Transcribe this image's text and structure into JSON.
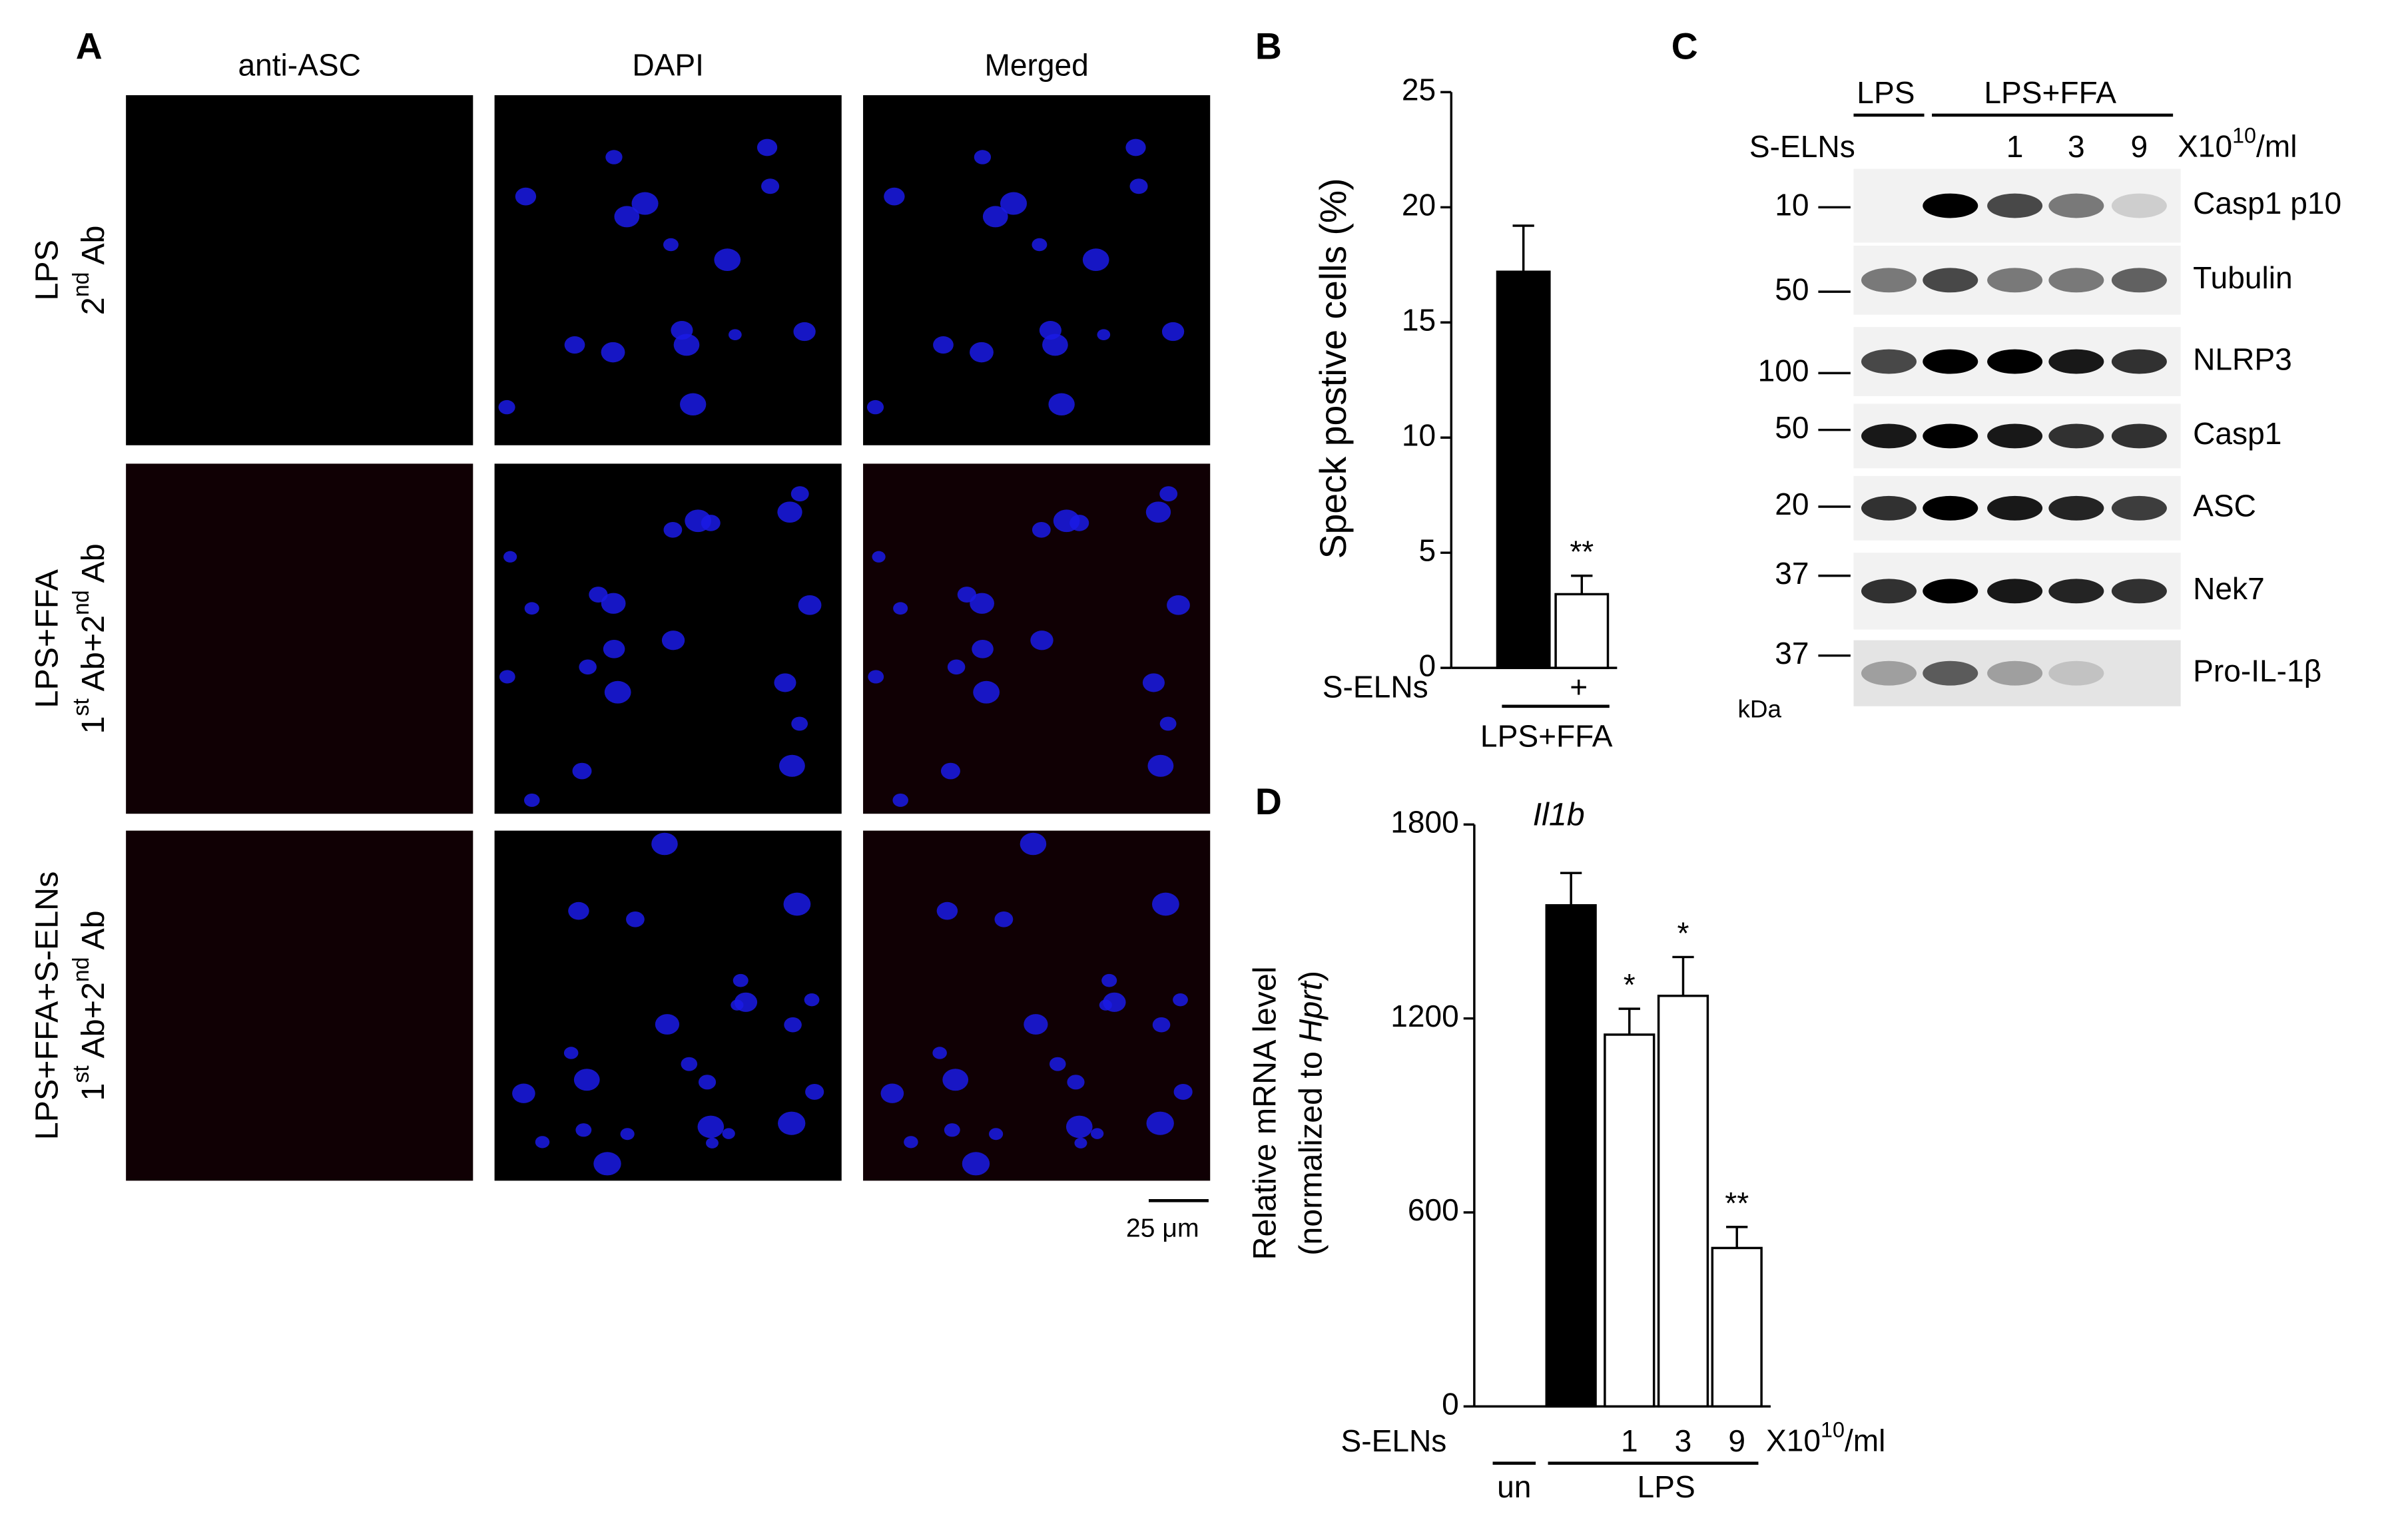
{
  "panel_labels": [
    "A",
    "B",
    "C",
    "D"
  ],
  "panel_a": {
    "columns": [
      "anti-ASC",
      "DAPI",
      "Merged"
    ],
    "rows": [
      {
        "line1": "LPS",
        "line2": [
          "2",
          "nd",
          " Ab"
        ]
      },
      {
        "line1": "LPS+FFA",
        "line2": [
          "1",
          "st",
          " Ab+2",
          "nd",
          " Ab"
        ]
      },
      {
        "line1": "LPS+FFA+S-ELNs",
        "line2": [
          "1",
          "st",
          " Ab+2",
          "nd",
          " Ab"
        ]
      }
    ],
    "scale_bar": "25 μm"
  },
  "panel_c": {
    "groups": [
      "LPS",
      "LPS+FFA"
    ],
    "row_label": "S-ELNs",
    "lanes": [
      "1",
      "3",
      "9"
    ],
    "unit": [
      "X10",
      "10",
      "/ml"
    ],
    "blots": [
      {
        "marker": "10",
        "name": "Casp1 p10"
      },
      {
        "marker": "50",
        "name": "Tubulin"
      },
      {
        "marker": "100",
        "name": "NLRP3"
      },
      {
        "marker": "50",
        "name": "Casp1"
      },
      {
        "marker": "20",
        "name": "ASC"
      },
      {
        "marker": "37",
        "name": "Nek7"
      },
      {
        "marker": "37",
        "name": "Pro-IL-1β"
      }
    ],
    "marker_unit": "kDa"
  },
  "chart_data": [
    {
      "type": "bar",
      "ylabel": "Speck postive cells (%)",
      "row_label": "S-ELNs",
      "categories": [
        null,
        "+"
      ],
      "group_labels": [
        "LPS+FFA"
      ],
      "values": [
        17.2,
        3.2
      ],
      "errors": [
        2.0,
        0.8
      ],
      "colors": [
        "#000000",
        "#ffffff"
      ],
      "significance": [
        null,
        "**"
      ],
      "ylim": [
        0,
        25
      ],
      "yticks": [
        0,
        5,
        10,
        15,
        20,
        25
      ]
    },
    {
      "type": "bar",
      "title": "Il1b",
      "ylabel": "Relative  mRNA level",
      "ylabel2": [
        "(normalized to ",
        "Hprt",
        ")"
      ],
      "row_label": "S-ELNs",
      "categories": [
        null,
        null,
        "1",
        "3",
        "9"
      ],
      "unit": [
        "X10",
        "10",
        "/ml"
      ],
      "group_labels": [
        "un",
        "LPS"
      ],
      "values": [
        0,
        1550,
        1150,
        1270,
        490
      ],
      "errors": [
        null,
        100,
        80,
        120,
        65
      ],
      "colors": [
        "#000000",
        "#000000",
        "#ffffff",
        "#ffffff",
        "#ffffff"
      ],
      "significance": [
        null,
        null,
        "*",
        "*",
        "**"
      ],
      "ylim": [
        0,
        1800
      ],
      "yticks": [
        0,
        600,
        1200,
        1800
      ]
    }
  ]
}
